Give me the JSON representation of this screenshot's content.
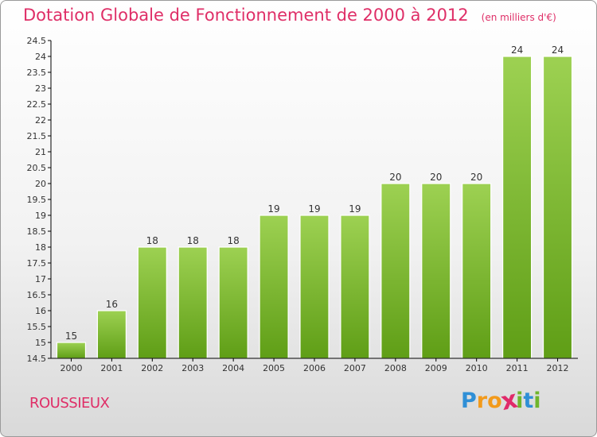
{
  "header": {
    "title": "Dotation Globale de Fonctionnement de 2000 à 2012",
    "unit": "(en milliers d'€)"
  },
  "footer": {
    "commune": "ROUSSIEUX",
    "brand": {
      "letters": [
        "P",
        "r",
        "o",
        "x",
        "i",
        "t",
        "i"
      ],
      "colors": [
        "#2f8fd6",
        "#f29a1b",
        "#f29a1b",
        "#e02a6a",
        "#6fb52c",
        "#2f8fd6",
        "#6fb52c"
      ]
    }
  },
  "chart_data": {
    "type": "bar",
    "categories": [
      "2000",
      "2001",
      "2002",
      "2003",
      "2004",
      "2005",
      "2006",
      "2007",
      "2008",
      "2009",
      "2010",
      "2011",
      "2012"
    ],
    "values": [
      15,
      16,
      18,
      18,
      18,
      19,
      19,
      19,
      20,
      20,
      20,
      24,
      24
    ],
    "data_labels": [
      "15",
      "16",
      "18",
      "18",
      "18",
      "19",
      "19",
      "19",
      "20",
      "20",
      "20",
      "24",
      "24"
    ],
    "ylim": [
      14.5,
      24.5
    ],
    "yticks": [
      "14.5",
      "15",
      "15.5",
      "16",
      "16.5",
      "17",
      "17.5",
      "18",
      "18.5",
      "19",
      "19.5",
      "20",
      "20.5",
      "21",
      "21.5",
      "22",
      "22.5",
      "23",
      "23.5",
      "24",
      "24.5"
    ],
    "grid": false,
    "legend": "none",
    "colors": {
      "bar_top": "#9dd152",
      "bar_bottom": "#5f9e16",
      "axis": "#000000",
      "text": "#333333"
    }
  }
}
